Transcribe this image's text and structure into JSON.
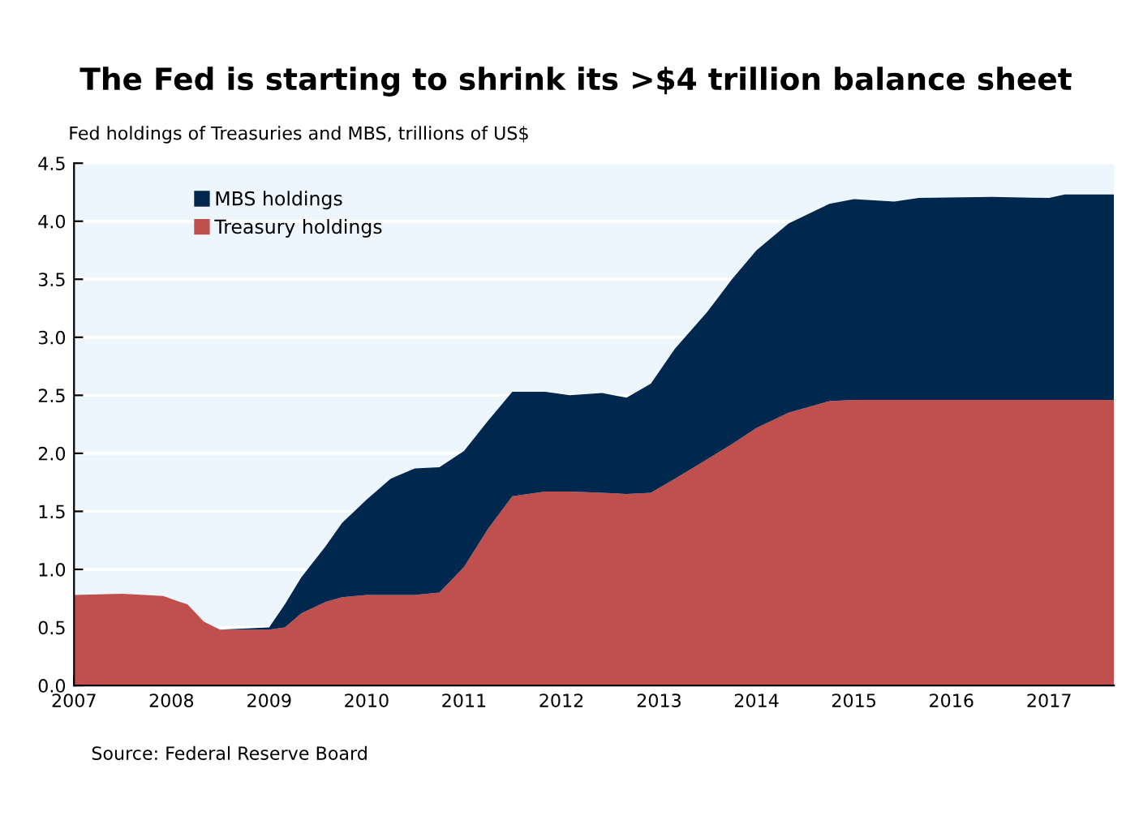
{
  "chart_data": {
    "type": "area",
    "stacked": true,
    "title": "The Fed is starting to shrink its >$4 trillion balance sheet",
    "subtitle": "Fed holdings of Treasuries and MBS, trillions of US$",
    "annotations": [
      "Source: Federal Reserve Board"
    ],
    "x": [
      "2007-01",
      "2007-07",
      "2007-12",
      "2008-02",
      "2008-03",
      "2008-05",
      "2008-07",
      "2009-01",
      "2009-03",
      "2009-05",
      "2009-08",
      "2009-10",
      "2010-01",
      "2010-04",
      "2010-07",
      "2010-10",
      "2011-01",
      "2011-04",
      "2011-07",
      "2011-11",
      "2012-02",
      "2012-06",
      "2012-09",
      "2012-12",
      "2013-03",
      "2013-07",
      "2013-10",
      "2014-01",
      "2014-05",
      "2014-10",
      "2015-01",
      "2015-06",
      "2015-09",
      "2016-06",
      "2017-01",
      "2017-03",
      "2017-09"
    ],
    "series": [
      {
        "name": "Treasury holdings",
        "color": "#c0504d",
        "values": [
          0.78,
          0.79,
          0.77,
          0.72,
          0.7,
          0.55,
          0.48,
          0.48,
          0.5,
          0.62,
          0.72,
          0.76,
          0.78,
          0.78,
          0.78,
          0.8,
          1.02,
          1.35,
          1.63,
          1.67,
          1.67,
          1.66,
          1.65,
          1.66,
          1.78,
          1.95,
          2.08,
          2.22,
          2.35,
          2.45,
          2.46,
          2.46,
          2.46,
          2.46,
          2.46,
          2.46,
          2.46
        ]
      },
      {
        "name": "MBS holdings",
        "color": "#00274d",
        "values": [
          0,
          0,
          0,
          0,
          0,
          0,
          0,
          0.02,
          0.2,
          0.31,
          0.48,
          0.64,
          0.82,
          1.0,
          1.09,
          1.08,
          1.0,
          0.93,
          0.9,
          0.86,
          0.83,
          0.86,
          0.83,
          0.94,
          1.12,
          1.27,
          1.42,
          1.53,
          1.63,
          1.7,
          1.73,
          1.71,
          1.74,
          1.75,
          1.74,
          1.77,
          1.77
        ]
      }
    ],
    "xlim": [
      "2007-01",
      "2017-09"
    ],
    "xticks": [
      "2007",
      "2008",
      "2009",
      "2010",
      "2011",
      "2012",
      "2013",
      "2014",
      "2015",
      "2016",
      "2017"
    ],
    "ylim": [
      0,
      4.5
    ],
    "yticks": [
      {
        "value": 0,
        "label": "0.0"
      },
      {
        "value": 0.5,
        "label": "0.5"
      },
      {
        "value": 1,
        "label": "1.0"
      },
      {
        "value": 1.5,
        "label": "1.5"
      },
      {
        "value": 2,
        "label": "2.0"
      },
      {
        "value": 2.5,
        "label": "2.5"
      },
      {
        "value": 3,
        "label": "3.0"
      },
      {
        "value": 3.5,
        "label": "3.5"
      },
      {
        "value": 4,
        "label": "4.0"
      },
      {
        "value": 4.5,
        "label": "4.5"
      }
    ],
    "grid": "y",
    "legend": "top left"
  }
}
